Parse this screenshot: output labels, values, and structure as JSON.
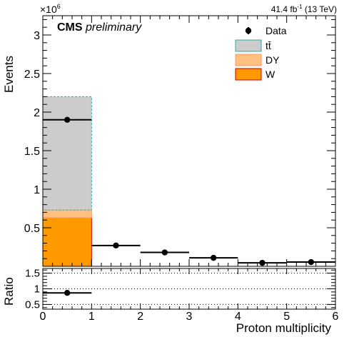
{
  "chart_data": [
    {
      "type": "bar",
      "stacked": true,
      "top_left_label": "CMS",
      "top_left_label_italic": "preliminary",
      "lumi_label": "41.4 fb",
      "lumi_exponent": "-1",
      "lumi_energy": " (13 TeV)",
      "xlabel": "Proton multiplicity",
      "ylabel": "Events",
      "y_multiplier_base": "×10",
      "y_multiplier_exp": "6",
      "xlim": [
        0,
        6
      ],
      "ylim": [
        0,
        3.25
      ],
      "x_ticks": [
        "0",
        "1",
        "2",
        "3",
        "4",
        "5",
        "6"
      ],
      "y_ticks": [
        "0.5",
        "1",
        "1.5",
        "2",
        "2.5",
        "3"
      ],
      "bin_edges": [
        0,
        1,
        2,
        3,
        4,
        5,
        6
      ],
      "series": [
        {
          "name": "W",
          "color": "#ff9900",
          "edge": "#cc0000",
          "values": [
            0.63,
            0,
            0,
            0,
            0,
            0
          ]
        },
        {
          "name": "DY",
          "color": "#ffc080",
          "edge": "#ff9966",
          "values": [
            0.1,
            0,
            0,
            0,
            0,
            0
          ]
        },
        {
          "name": "tt̄",
          "color": "#cccccc",
          "edge": "#33aaaa",
          "values": [
            1.47,
            0,
            0,
            0,
            0,
            0
          ]
        }
      ],
      "data": {
        "name": "Data",
        "x": [
          0.5,
          1.5,
          2.5,
          3.5,
          4.5,
          5.5
        ],
        "y": [
          1.9,
          0.27,
          0.18,
          0.11,
          0.045,
          0.055
        ]
      },
      "legend": [
        "Data",
        "tt̄",
        "DY",
        "W"
      ],
      "legend_position": "top-right"
    },
    {
      "type": "scatter",
      "ylabel": "Ratio",
      "xlim": [
        0,
        6
      ],
      "ylim": [
        0.35,
        1.65
      ],
      "y_ticks": [
        "0.5",
        "1",
        "1.5"
      ],
      "gridlines_y": [
        0.5,
        1.0,
        1.5
      ],
      "x": [
        0.5
      ],
      "y": [
        0.87
      ]
    }
  ]
}
